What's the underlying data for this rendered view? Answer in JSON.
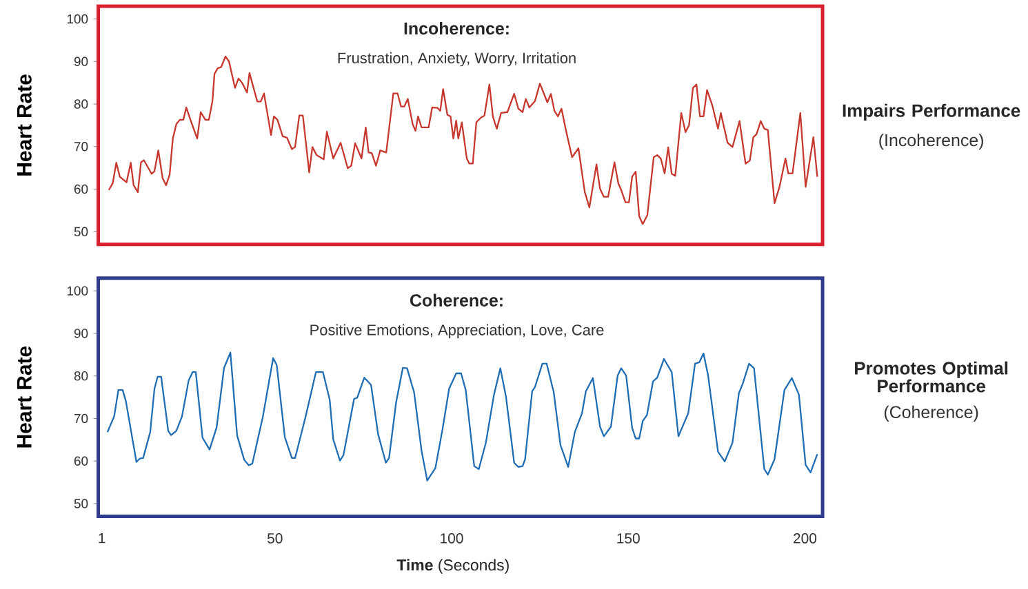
{
  "chart_data": [
    {
      "type": "line",
      "title": "Incoherence:",
      "subtitle": "Frustration, Anxiety, Worry, Irritation",
      "ylabel": "Heart Rate",
      "annotations": [
        "Impairs Performance",
        "(Incoherence)"
      ],
      "xlim": [
        0,
        205
      ],
      "ylim": [
        47,
        103
      ],
      "yticks": [
        50,
        60,
        70,
        80,
        90,
        100
      ],
      "tick_labels": "y",
      "x": [
        3.0,
        4.1,
        5.1,
        6.1,
        8.0,
        9.2,
        10.0,
        11.2,
        12.1,
        12.9,
        15.1,
        15.9,
        17.0,
        18.2,
        19.2,
        20.2,
        21.1,
        22.1,
        23.1,
        24.1,
        24.9,
        26.0,
        28.0,
        29.0,
        30.3,
        31.3,
        32.3,
        32.9,
        33.8,
        34.8,
        36.0,
        37.0,
        38.7,
        39.7,
        40.7,
        42.1,
        42.8,
        45.0,
        46.0,
        46.9,
        48.9,
        49.7,
        50.7,
        52.2,
        53.4,
        54.8,
        55.7,
        56.9,
        57.9,
        59.7,
        60.6,
        61.8,
        63.8,
        64.7,
        66.5,
        68.6,
        70.6,
        71.6,
        72.7,
        74.5,
        75.7,
        76.5,
        77.4,
        78.6,
        79.8,
        81.5,
        83.5,
        84.7,
        85.7,
        86.6,
        87.6,
        89.0,
        89.8,
        90.5,
        91.5,
        93.5,
        94.5,
        96.0,
        96.8,
        97.6,
        98.8,
        99.7,
        100.5,
        101.3,
        101.9,
        102.9,
        104.3,
        105.0,
        106.0,
        107.0,
        108.3,
        109.3,
        110.7,
        111.7,
        112.8,
        114.0,
        115.8,
        117.7,
        118.9,
        120.1,
        121.0,
        122.0,
        123.6,
        125.0,
        127.1,
        128.1,
        129.1,
        130.1,
        131.1,
        132.4,
        134.1,
        135.9,
        137.7,
        139.0,
        141.0,
        142.0,
        143.1,
        144.3,
        146.1,
        147.2,
        148.0,
        149.2,
        150.2,
        151.1,
        152.1,
        153.1,
        154.1,
        155.4,
        157.2,
        158.2,
        159.2,
        160.3,
        161.3,
        162.3,
        163.3,
        165.0,
        166.2,
        167.2,
        168.3,
        169.3,
        170.3,
        171.3,
        172.3,
        173.8,
        175.4,
        176.2,
        178.1,
        179.5,
        181.5,
        183.2,
        184.4,
        185.4,
        186.3,
        187.5,
        188.5,
        189.5,
        191.4,
        192.8,
        194.5,
        195.3,
        196.5,
        198.7,
        200.2,
        202.4,
        203.5
      ],
      "series": [
        {
          "color": "#c8372d",
          "values": [
            59.8,
            61.4,
            66.2,
            62.9,
            61.6,
            66.2,
            60.9,
            59.3,
            66.3,
            66.8,
            63.6,
            64.2,
            69.1,
            62.6,
            60.9,
            63.4,
            71.9,
            75.3,
            76.3,
            76.3,
            79.2,
            76.5,
            71.9,
            78.1,
            76.3,
            76.3,
            80.6,
            87.1,
            88.4,
            88.7,
            91.2,
            90.0,
            83.8,
            86.0,
            85.0,
            82.7,
            87.3,
            80.6,
            80.6,
            82.5,
            72.7,
            77.1,
            76.3,
            72.4,
            72.1,
            69.4,
            69.9,
            77.3,
            77.3,
            63.9,
            69.9,
            68.0,
            67.0,
            73.5,
            67.2,
            70.9,
            64.9,
            65.5,
            70.8,
            67.2,
            74.5,
            68.6,
            68.5,
            65.5,
            69.1,
            68.6,
            82.5,
            82.5,
            79.4,
            79.4,
            81.2,
            75.2,
            73.7,
            77.1,
            74.5,
            74.5,
            79.2,
            79.1,
            78.4,
            83.5,
            77.5,
            77.1,
            71.9,
            76.1,
            71.9,
            75.7,
            67.2,
            66.0,
            66.0,
            75.7,
            76.8,
            77.3,
            84.6,
            77.0,
            74.2,
            77.9,
            78.1,
            82.4,
            78.9,
            78.1,
            81.2,
            79.2,
            80.7,
            84.8,
            80.4,
            82.4,
            78.4,
            77.1,
            78.9,
            73.7,
            67.5,
            69.6,
            59.3,
            55.7,
            65.8,
            60.1,
            58.2,
            58.2,
            66.3,
            61.3,
            59.8,
            56.9,
            56.9,
            62.9,
            64.1,
            53.6,
            51.8,
            53.9,
            67.5,
            68.0,
            67.2,
            63.7,
            69.8,
            63.6,
            63.1,
            77.9,
            73.4,
            75.0,
            83.8,
            84.6,
            77.1,
            77.1,
            83.3,
            79.6,
            74.2,
            77.9,
            70.9,
            69.9,
            76.0,
            66.0,
            66.7,
            72.2,
            72.9,
            76.0,
            74.2,
            73.9,
            56.7,
            60.5,
            67.2,
            63.7,
            63.7,
            77.9,
            60.5,
            72.2,
            62.9
          ]
        }
      ]
    },
    {
      "type": "line",
      "title": "Coherence:",
      "subtitle": "Positive Emotions, Appreciation, Love, Care",
      "ylabel": "Heart Rate",
      "xlabel": "**Time** (Seconds)",
      "annotations": [
        "Promotes Optimal Performance",
        "(Coherence)"
      ],
      "xlim": [
        0,
        205
      ],
      "xticks": [
        1,
        50,
        100,
        150,
        200
      ],
      "ylim": [
        47,
        103
      ],
      "yticks": [
        50,
        60,
        70,
        80,
        90,
        100
      ],
      "x": [
        2.6,
        4.5,
        5.7,
        6.9,
        7.8,
        10.8,
        11.8,
        12.7,
        14.7,
        15.9,
        16.8,
        17.8,
        19.8,
        20.6,
        22.1,
        23.7,
        25.6,
        26.7,
        27.6,
        29.5,
        31.5,
        33.5,
        35.6,
        37.4,
        39.3,
        41.3,
        42.6,
        43.6,
        46.6,
        49.5,
        50.5,
        52.8,
        54.8,
        55.7,
        58.7,
        61.6,
        63.6,
        65.5,
        66.5,
        68.4,
        69.4,
        72.4,
        73.3,
        75.3,
        77.2,
        79.2,
        81.4,
        82.3,
        84.3,
        86.2,
        87.4,
        89.4,
        91.5,
        93.1,
        95.4,
        97.4,
        99.3,
        101.3,
        102.7,
        104.0,
        106.4,
        107.7,
        109.7,
        112.0,
        113.8,
        115.4,
        117.7,
        118.9,
        120.1,
        120.8,
        122.8,
        123.6,
        125.7,
        126.9,
        128.9,
        130.8,
        133.0,
        134.9,
        136.9,
        138.0,
        140.0,
        142.0,
        143.1,
        145.1,
        147.0,
        148.0,
        149.4,
        151.1,
        152.1,
        153.1,
        154.1,
        155.3,
        157.0,
        158.2,
        160.1,
        162.3,
        164.2,
        167.0,
        168.9,
        170.1,
        171.3,
        172.6,
        175.4,
        177.3,
        179.5,
        181.3,
        182.4,
        184.2,
        185.6,
        188.5,
        189.5,
        191.4,
        194.2,
        196.3,
        198.3,
        200.2,
        201.6,
        203.5
      ],
      "series": [
        {
          "color": "#1f6db5",
          "values": [
            66.8,
            70.5,
            76.7,
            76.7,
            74.1,
            59.8,
            60.6,
            60.7,
            66.8,
            77.0,
            79.8,
            79.8,
            67.1,
            66.1,
            67.1,
            70.5,
            79.0,
            80.9,
            80.9,
            65.5,
            62.7,
            67.9,
            81.9,
            85.5,
            66.0,
            60.3,
            59.0,
            59.4,
            70.5,
            84.2,
            82.6,
            65.6,
            60.7,
            60.7,
            70.5,
            80.9,
            80.9,
            74.4,
            65.1,
            60.1,
            61.4,
            74.6,
            74.9,
            79.6,
            77.9,
            66.3,
            59.6,
            60.7,
            73.8,
            81.9,
            81.8,
            76.1,
            62.4,
            55.4,
            58.3,
            67.3,
            77.0,
            80.6,
            80.6,
            76.7,
            58.8,
            58.1,
            64.3,
            75.6,
            81.8,
            75.1,
            59.6,
            58.6,
            58.8,
            60.4,
            76.4,
            77.4,
            82.9,
            82.9,
            76.2,
            63.8,
            58.6,
            66.9,
            71.2,
            76.4,
            79.5,
            68.1,
            65.8,
            68.1,
            80.1,
            81.8,
            80.1,
            67.8,
            65.3,
            65.3,
            69.4,
            70.8,
            78.7,
            79.6,
            84.0,
            80.9,
            65.8,
            71.3,
            82.9,
            83.2,
            85.3,
            80.1,
            62.2,
            59.9,
            64.3,
            75.9,
            78.2,
            82.9,
            81.8,
            58.1,
            56.8,
            60.4,
            76.7,
            79.5,
            75.6,
            59.1,
            57.3,
            61.6
          ]
        }
      ]
    }
  ]
}
